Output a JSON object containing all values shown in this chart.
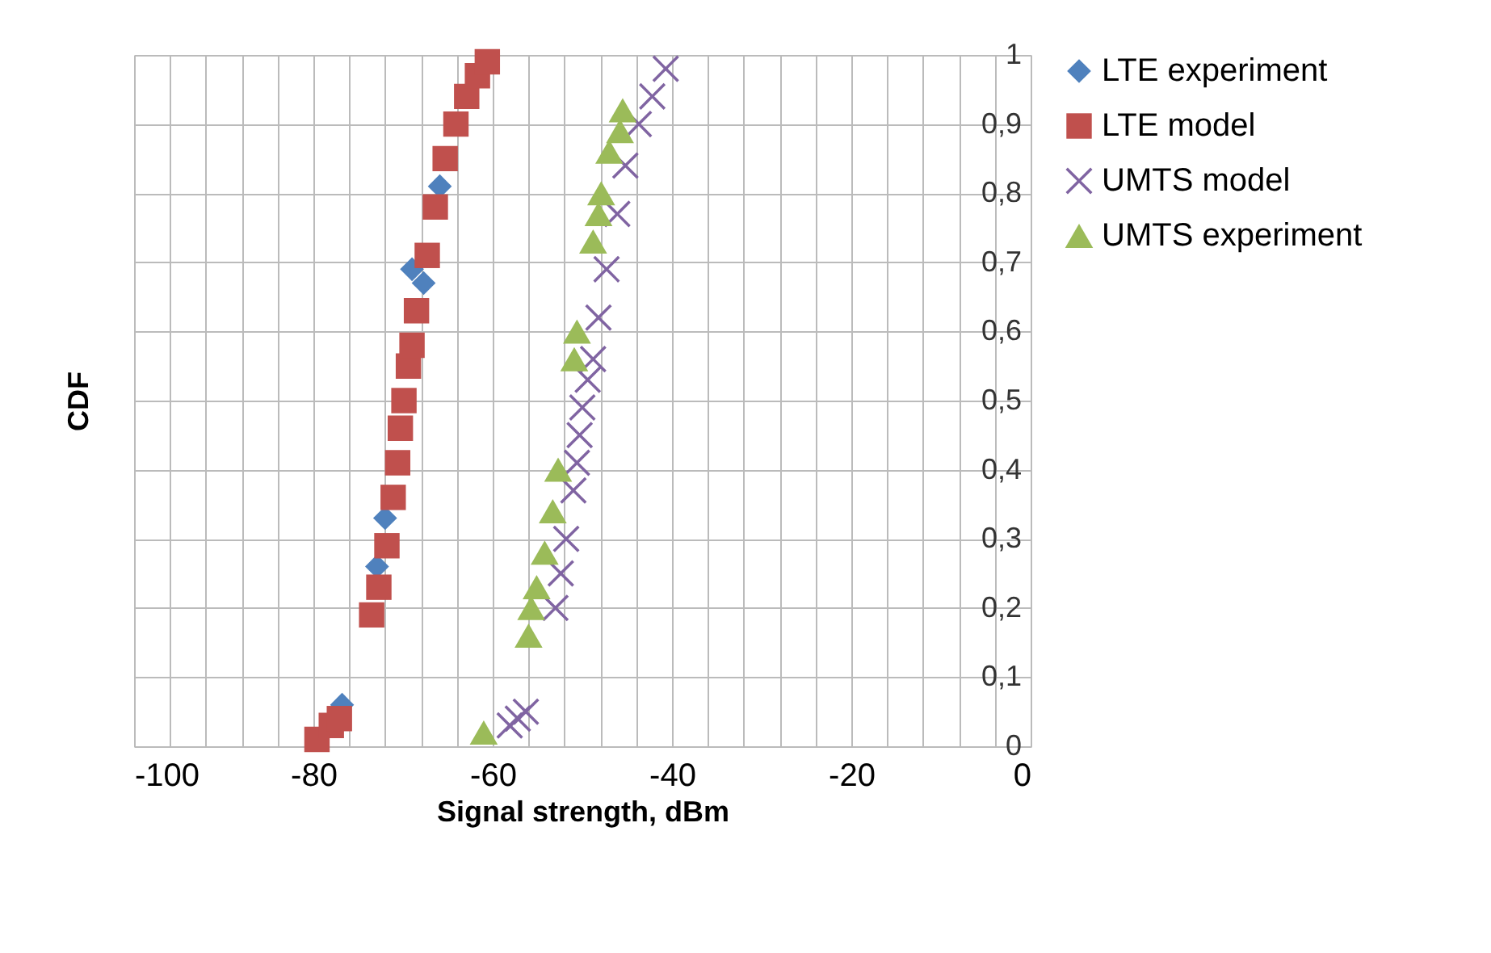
{
  "chart_data": {
    "type": "scatter",
    "xlabel": "Signal strength, dBm",
    "ylabel": "CDF",
    "xlim": [
      -100,
      0
    ],
    "ylim": [
      0,
      1
    ],
    "xticks": [
      -100,
      {
        "value": -96,
        "label": null
      },
      {
        "value": -92,
        "label": null
      },
      {
        "value": -88,
        "label": null
      },
      {
        "value": -84,
        "label": null
      },
      -80,
      {
        "value": -76,
        "label": null
      },
      {
        "value": -72,
        "label": null
      },
      {
        "value": -68,
        "label": null
      },
      {
        "value": -64,
        "label": null
      },
      -60,
      {
        "value": -56,
        "label": null
      },
      {
        "value": -52,
        "label": null
      },
      {
        "value": -48,
        "label": null
      },
      {
        "value": -44,
        "label": null
      },
      -40,
      {
        "value": -36,
        "label": null
      },
      {
        "value": -32,
        "label": null
      },
      {
        "value": -28,
        "label": null
      },
      {
        "value": -24,
        "label": null
      },
      -20,
      {
        "value": -16,
        "label": null
      },
      {
        "value": -12,
        "label": null
      },
      {
        "value": -8,
        "label": null
      },
      {
        "value": -4,
        "label": null
      },
      0
    ],
    "yticks": [
      0,
      {
        "value": 0.1,
        "label": "0,1"
      },
      {
        "value": 0.2,
        "label": "0,2"
      },
      {
        "value": 0.3,
        "label": "0,3"
      },
      {
        "value": 0.4,
        "label": "0,4"
      },
      {
        "value": 0.5,
        "label": "0,5"
      },
      {
        "value": 0.6,
        "label": "0,6"
      },
      {
        "value": 0.7,
        "label": "0,7"
      },
      {
        "value": 0.8,
        "label": "0,8"
      },
      {
        "value": 0.9,
        "label": "0,9"
      },
      1
    ],
    "grid": true,
    "legend": "right",
    "series": [
      {
        "name": "LTE experiment",
        "color": "#4f81bd",
        "marker": "diamond",
        "x": [
          -76.8,
          -72.9,
          -72.0,
          -69.0,
          -67.7,
          -65.9
        ],
        "values": [
          0.06,
          0.26,
          0.33,
          0.69,
          0.67,
          0.81
        ]
      },
      {
        "name": "LTE model",
        "color": "#c0504d",
        "marker": "square",
        "x": [
          -79.6,
          -78.0,
          -77.1,
          -73.5,
          -72.7,
          -71.8,
          -71.1,
          -70.6,
          -70.3,
          -69.9,
          -69.4,
          -69.0,
          -68.5,
          -67.3,
          -66.4,
          -65.3,
          -64.1,
          -62.9,
          -61.7,
          -60.6
        ],
        "values": [
          0.01,
          0.03,
          0.04,
          0.19,
          0.23,
          0.29,
          0.36,
          0.41,
          0.46,
          0.5,
          0.55,
          0.58,
          0.63,
          0.71,
          0.78,
          0.85,
          0.9,
          0.94,
          0.97,
          0.99
        ]
      },
      {
        "name": "UMTS model",
        "color": "#8064a2",
        "marker": "cross",
        "x": [
          -58.1,
          -57.2,
          -56.3,
          -53.0,
          -52.4,
          -51.8,
          -51.0,
          -50.6,
          -50.3,
          -50.0,
          -49.4,
          -48.8,
          -48.2,
          -47.3,
          -46.1,
          -45.2,
          -43.7,
          -42.2,
          -40.7
        ],
        "values": [
          0.03,
          0.04,
          0.05,
          0.2,
          0.25,
          0.3,
          0.37,
          0.41,
          0.45,
          0.49,
          0.53,
          0.56,
          0.62,
          0.69,
          0.77,
          0.84,
          0.9,
          0.94,
          0.98
        ]
      },
      {
        "name": "UMTS experiment",
        "color": "#9bbb59",
        "marker": "triangle",
        "x": [
          -61.0,
          -56.0,
          -55.7,
          -55.1,
          -54.2,
          -53.3,
          -52.7,
          -50.9,
          -50.6,
          -48.8,
          -48.2,
          -47.9,
          -47.0,
          -45.8,
          -45.5
        ],
        "values": [
          0.02,
          0.16,
          0.2,
          0.23,
          0.28,
          0.34,
          0.4,
          0.56,
          0.6,
          0.73,
          0.77,
          0.8,
          0.86,
          0.89,
          0.92
        ]
      }
    ]
  }
}
